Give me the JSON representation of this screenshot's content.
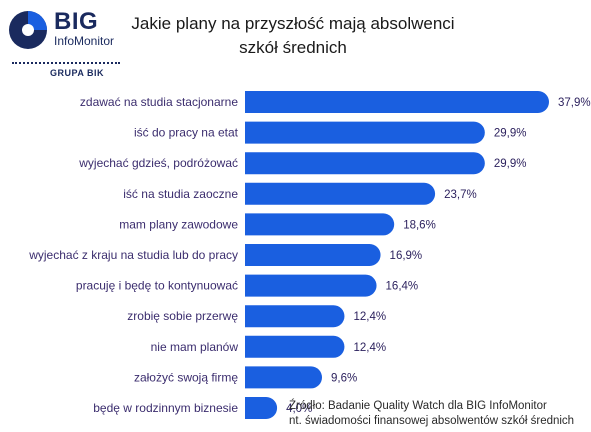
{
  "brand": {
    "name": "BIG",
    "subname": "InfoMonitor",
    "group": "GRUPA BIK",
    "color": "#1a2a5e",
    "accent": "#1a5fe0"
  },
  "chart_data": {
    "type": "bar",
    "orientation": "horizontal",
    "title_line1": "Jakie plany na przyszłość mają absolwenci",
    "title_line2": "szkół średnich",
    "categories": [
      "zdawać na studia stacjonarne",
      "iść do pracy na etat",
      "wyjechać gdzieś, podróżować",
      "iść na studia zaoczne",
      "mam plany zawodowe",
      "wyjechać z kraju na studia lub do pracy",
      "pracuję i będę to kontynuować",
      "zrobię sobie przerwę",
      "nie mam planów",
      "założyć swoją firmę",
      "będę w rodzinnym biznesie"
    ],
    "values": [
      37.9,
      29.9,
      29.9,
      23.7,
      18.6,
      16.9,
      16.4,
      12.4,
      12.4,
      9.6,
      4.0
    ],
    "value_labels": [
      "37,9%",
      "29,9%",
      "29,9%",
      "23,7%",
      "18,6%",
      "16,9%",
      "16,4%",
      "12,4%",
      "12,4%",
      "9,6%",
      "4,0%"
    ],
    "bar_color": "#1a5fe0",
    "label_color": "#3b2d6e",
    "grid": false,
    "legend": "none"
  },
  "source": {
    "line1": "Źródło: Badanie Quality Watch dla BIG InfoMonitor",
    "line2": "nt. świadomości finansowej absolwentów szkół średnich"
  }
}
